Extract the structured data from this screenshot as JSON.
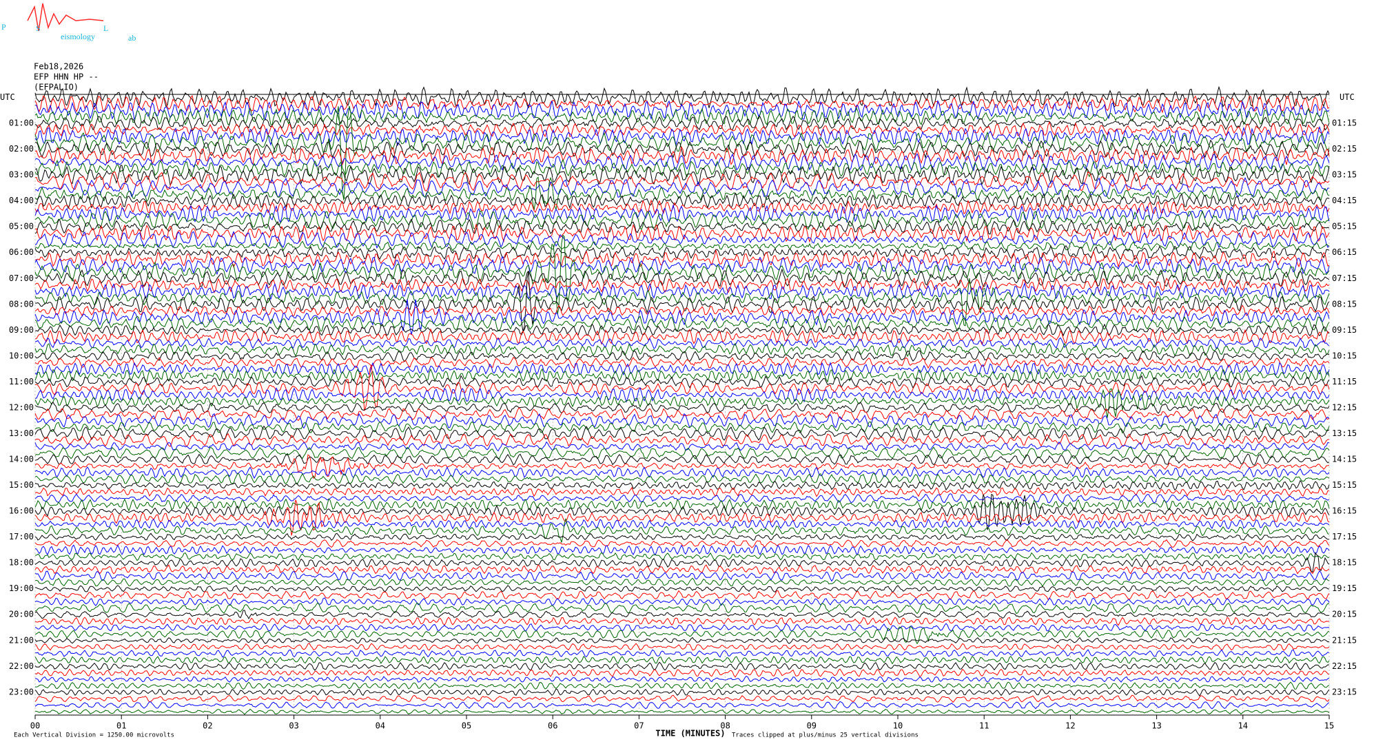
{
  "logo": {
    "p": "P",
    "s": "S",
    "l": "L",
    "seismology": "eismology",
    "lab": "ab"
  },
  "chart_data": {
    "type": "helicorder",
    "title": "Feb18,2026",
    "subtitle": "EFP HHN HP --",
    "station": "(EFPALIO)",
    "left_labels": [
      "UTC",
      "01:00",
      "02:00",
      "03:00",
      "04:00",
      "05:00",
      "06:00",
      "07:00",
      "08:00",
      "09:00",
      "10:00",
      "11:00",
      "12:00",
      "13:00",
      "14:00",
      "15:00",
      "16:00",
      "17:00",
      "18:00",
      "19:00",
      "20:00",
      "21:00",
      "22:00",
      "23:00"
    ],
    "right_labels": [
      "UTC",
      "01:15",
      "02:15",
      "03:15",
      "04:15",
      "05:15",
      "06:15",
      "07:15",
      "08:15",
      "09:15",
      "10:15",
      "11:15",
      "12:15",
      "13:15",
      "14:15",
      "15:15",
      "16:15",
      "17:15",
      "18:15",
      "19:15",
      "20:15",
      "21:15",
      "22:15",
      "23:15"
    ],
    "xlabel": "TIME (MINUTES)",
    "scale_note": "Each Vertical Division = 1250.00 microvolts",
    "clip_note": "Traces clipped at plus/minus 25 vertical divisions",
    "xlim": [
      0,
      15
    ],
    "xticks": [
      {
        "value": 0,
        "label": "00"
      },
      {
        "value": 1,
        "label": "01"
      },
      {
        "value": 2,
        "label": "02"
      },
      {
        "value": 3,
        "label": "03"
      },
      {
        "value": 4,
        "label": "04"
      },
      {
        "value": 5,
        "label": "05"
      },
      {
        "value": 6,
        "label": "06"
      },
      {
        "value": 7,
        "label": "07"
      },
      {
        "value": 8,
        "label": "08"
      },
      {
        "value": 9,
        "label": "09"
      },
      10,
      11,
      12,
      13,
      14,
      15
    ],
    "trace_colors": [
      "#000000",
      "#ff0000",
      "#0000ff",
      "#006400"
    ],
    "grid": true
  }
}
